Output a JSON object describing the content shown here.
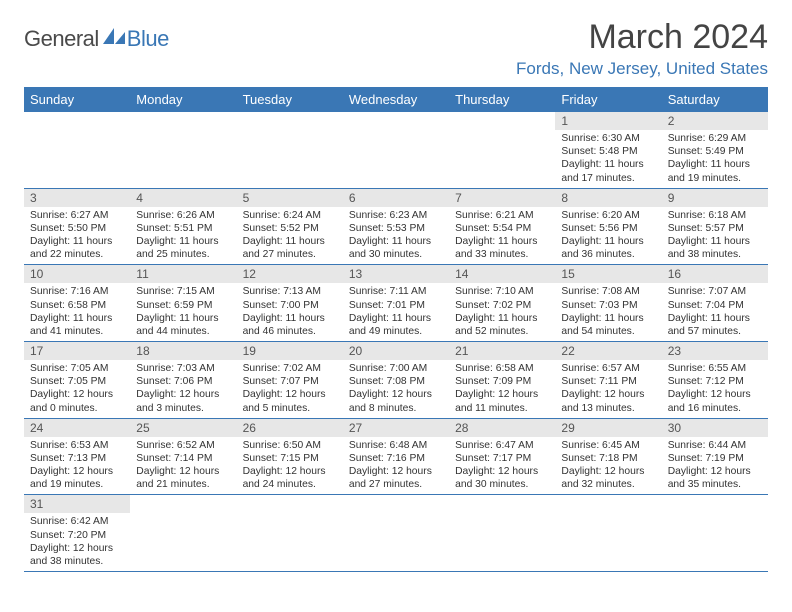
{
  "logo": {
    "general": "General",
    "blue": "Blue"
  },
  "title": "March 2024",
  "location": "Fords, New Jersey, United States",
  "header_bg": "#3a77b5",
  "daynum_bg": "#e7e7e7",
  "dow": [
    "Sunday",
    "Monday",
    "Tuesday",
    "Wednesday",
    "Thursday",
    "Friday",
    "Saturday"
  ],
  "weeks": [
    {
      "nums": [
        "",
        "",
        "",
        "",
        "",
        "1",
        "2"
      ],
      "cells": [
        null,
        null,
        null,
        null,
        null,
        {
          "sr": "Sunrise: 6:30 AM",
          "ss": "Sunset: 5:48 PM",
          "dl": "Daylight: 11 hours and 17 minutes."
        },
        {
          "sr": "Sunrise: 6:29 AM",
          "ss": "Sunset: 5:49 PM",
          "dl": "Daylight: 11 hours and 19 minutes."
        }
      ]
    },
    {
      "nums": [
        "3",
        "4",
        "5",
        "6",
        "7",
        "8",
        "9"
      ],
      "cells": [
        {
          "sr": "Sunrise: 6:27 AM",
          "ss": "Sunset: 5:50 PM",
          "dl": "Daylight: 11 hours and 22 minutes."
        },
        {
          "sr": "Sunrise: 6:26 AM",
          "ss": "Sunset: 5:51 PM",
          "dl": "Daylight: 11 hours and 25 minutes."
        },
        {
          "sr": "Sunrise: 6:24 AM",
          "ss": "Sunset: 5:52 PM",
          "dl": "Daylight: 11 hours and 27 minutes."
        },
        {
          "sr": "Sunrise: 6:23 AM",
          "ss": "Sunset: 5:53 PM",
          "dl": "Daylight: 11 hours and 30 minutes."
        },
        {
          "sr": "Sunrise: 6:21 AM",
          "ss": "Sunset: 5:54 PM",
          "dl": "Daylight: 11 hours and 33 minutes."
        },
        {
          "sr": "Sunrise: 6:20 AM",
          "ss": "Sunset: 5:56 PM",
          "dl": "Daylight: 11 hours and 36 minutes."
        },
        {
          "sr": "Sunrise: 6:18 AM",
          "ss": "Sunset: 5:57 PM",
          "dl": "Daylight: 11 hours and 38 minutes."
        }
      ]
    },
    {
      "nums": [
        "10",
        "11",
        "12",
        "13",
        "14",
        "15",
        "16"
      ],
      "cells": [
        {
          "sr": "Sunrise: 7:16 AM",
          "ss": "Sunset: 6:58 PM",
          "dl": "Daylight: 11 hours and 41 minutes."
        },
        {
          "sr": "Sunrise: 7:15 AM",
          "ss": "Sunset: 6:59 PM",
          "dl": "Daylight: 11 hours and 44 minutes."
        },
        {
          "sr": "Sunrise: 7:13 AM",
          "ss": "Sunset: 7:00 PM",
          "dl": "Daylight: 11 hours and 46 minutes."
        },
        {
          "sr": "Sunrise: 7:11 AM",
          "ss": "Sunset: 7:01 PM",
          "dl": "Daylight: 11 hours and 49 minutes."
        },
        {
          "sr": "Sunrise: 7:10 AM",
          "ss": "Sunset: 7:02 PM",
          "dl": "Daylight: 11 hours and 52 minutes."
        },
        {
          "sr": "Sunrise: 7:08 AM",
          "ss": "Sunset: 7:03 PM",
          "dl": "Daylight: 11 hours and 54 minutes."
        },
        {
          "sr": "Sunrise: 7:07 AM",
          "ss": "Sunset: 7:04 PM",
          "dl": "Daylight: 11 hours and 57 minutes."
        }
      ]
    },
    {
      "nums": [
        "17",
        "18",
        "19",
        "20",
        "21",
        "22",
        "23"
      ],
      "cells": [
        {
          "sr": "Sunrise: 7:05 AM",
          "ss": "Sunset: 7:05 PM",
          "dl": "Daylight: 12 hours and 0 minutes."
        },
        {
          "sr": "Sunrise: 7:03 AM",
          "ss": "Sunset: 7:06 PM",
          "dl": "Daylight: 12 hours and 3 minutes."
        },
        {
          "sr": "Sunrise: 7:02 AM",
          "ss": "Sunset: 7:07 PM",
          "dl": "Daylight: 12 hours and 5 minutes."
        },
        {
          "sr": "Sunrise: 7:00 AM",
          "ss": "Sunset: 7:08 PM",
          "dl": "Daylight: 12 hours and 8 minutes."
        },
        {
          "sr": "Sunrise: 6:58 AM",
          "ss": "Sunset: 7:09 PM",
          "dl": "Daylight: 12 hours and 11 minutes."
        },
        {
          "sr": "Sunrise: 6:57 AM",
          "ss": "Sunset: 7:11 PM",
          "dl": "Daylight: 12 hours and 13 minutes."
        },
        {
          "sr": "Sunrise: 6:55 AM",
          "ss": "Sunset: 7:12 PM",
          "dl": "Daylight: 12 hours and 16 minutes."
        }
      ]
    },
    {
      "nums": [
        "24",
        "25",
        "26",
        "27",
        "28",
        "29",
        "30"
      ],
      "cells": [
        {
          "sr": "Sunrise: 6:53 AM",
          "ss": "Sunset: 7:13 PM",
          "dl": "Daylight: 12 hours and 19 minutes."
        },
        {
          "sr": "Sunrise: 6:52 AM",
          "ss": "Sunset: 7:14 PM",
          "dl": "Daylight: 12 hours and 21 minutes."
        },
        {
          "sr": "Sunrise: 6:50 AM",
          "ss": "Sunset: 7:15 PM",
          "dl": "Daylight: 12 hours and 24 minutes."
        },
        {
          "sr": "Sunrise: 6:48 AM",
          "ss": "Sunset: 7:16 PM",
          "dl": "Daylight: 12 hours and 27 minutes."
        },
        {
          "sr": "Sunrise: 6:47 AM",
          "ss": "Sunset: 7:17 PM",
          "dl": "Daylight: 12 hours and 30 minutes."
        },
        {
          "sr": "Sunrise: 6:45 AM",
          "ss": "Sunset: 7:18 PM",
          "dl": "Daylight: 12 hours and 32 minutes."
        },
        {
          "sr": "Sunrise: 6:44 AM",
          "ss": "Sunset: 7:19 PM",
          "dl": "Daylight: 12 hours and 35 minutes."
        }
      ]
    },
    {
      "nums": [
        "31",
        "",
        "",
        "",
        "",
        "",
        ""
      ],
      "cells": [
        {
          "sr": "Sunrise: 6:42 AM",
          "ss": "Sunset: 7:20 PM",
          "dl": "Daylight: 12 hours and 38 minutes."
        },
        null,
        null,
        null,
        null,
        null,
        null
      ]
    }
  ]
}
